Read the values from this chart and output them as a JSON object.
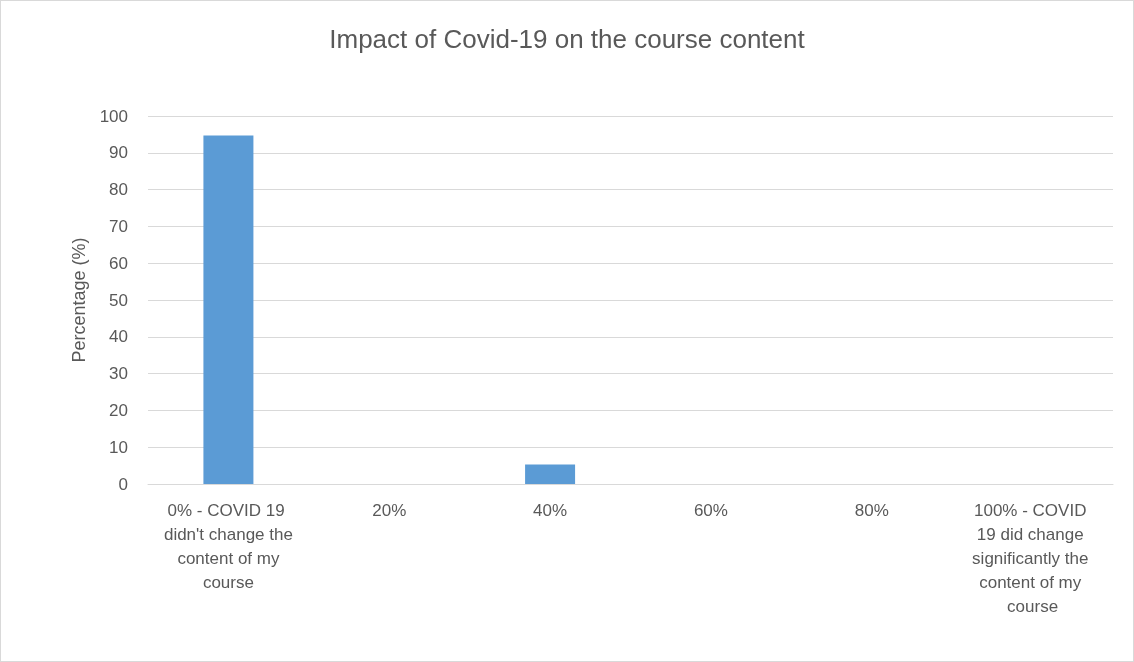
{
  "chart_data": {
    "type": "bar",
    "title": "Impact of Covid-19 on the course content",
    "ylabel": "Percentage (%)",
    "categories": [
      "0% - COVID 19 didn't change the content of my course",
      "20%",
      "40%",
      "60%",
      "80%",
      "100% - COVID 19 did change significantly the content of my course"
    ],
    "values": [
      94.7,
      0,
      5.3,
      0,
      0,
      0
    ],
    "color": "#5b9bd5",
    "ylim": [
      0,
      100
    ],
    "yticks": [
      0,
      10,
      20,
      30,
      40,
      50,
      60,
      70,
      80,
      90,
      100
    ],
    "grid": "y"
  }
}
